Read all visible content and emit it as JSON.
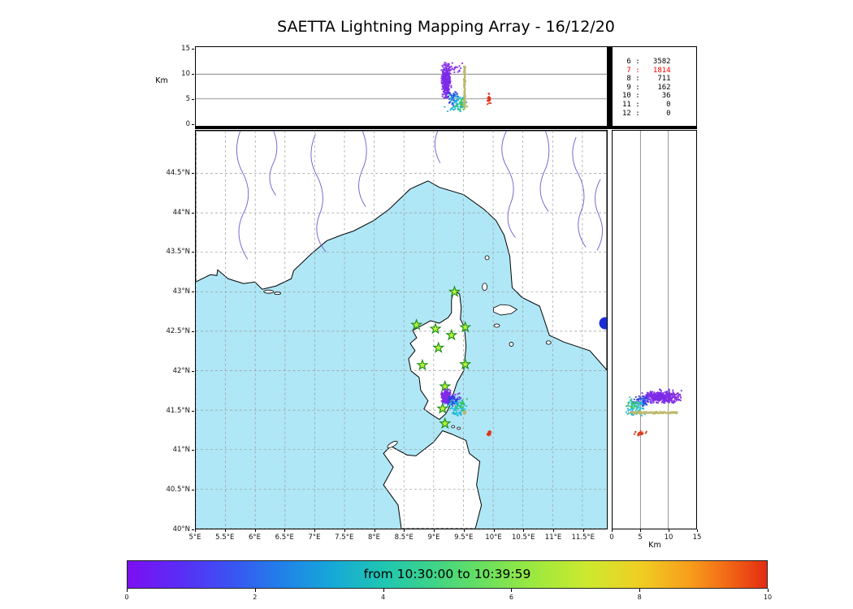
{
  "title": "SAETTA Lightning Mapping Array - 16/12/20",
  "chart_data": {
    "type": "scatter",
    "title": "SAETTA Lightning Mapping Array - 16/12/20",
    "time_label": "from 10:30:00 to 10:39:59",
    "altitude_axis": {
      "label": "Km",
      "ticks": [
        0,
        5,
        10,
        15
      ],
      "tick_labels": [
        "0",
        "5",
        "10",
        "15"
      ],
      "grid": [
        5,
        10
      ],
      "range_km": [
        0,
        15
      ]
    },
    "km_axis": {
      "label": "Km",
      "ticks": [
        0,
        5,
        10,
        15
      ],
      "tick_labels": [
        "0",
        "5",
        "10",
        "15"
      ],
      "grid": [
        5,
        10
      ],
      "range_km": [
        0,
        15
      ]
    },
    "map_axis": {
      "lon_ticks": [
        5,
        5.5,
        6,
        6.5,
        7,
        7.5,
        8,
        8.5,
        9,
        9.5,
        10,
        10.5,
        11,
        11.5
      ],
      "lon_tick_labels": [
        "5°E",
        "5.5°E",
        "6°E",
        "6.5°E",
        "7°E",
        "7.5°E",
        "8°E",
        "8.5°E",
        "9°E",
        "9.5°E",
        "10°E",
        "10.5°E",
        "11°E",
        "11.5°E"
      ],
      "lat_ticks": [
        40,
        40.5,
        41,
        41.5,
        42,
        42.5,
        43,
        43.5,
        44,
        44.5
      ],
      "lat_tick_labels": [
        "40°N",
        "40.5°N",
        "41°N",
        "41.5°N",
        "42°N",
        "42.5°N",
        "43°N",
        "43.5°N",
        "44°N",
        "44.5°N"
      ],
      "lon_range": [
        5.0,
        11.91
      ],
      "lat_range": [
        40.0,
        45.04
      ]
    },
    "station_counts": {
      "rows": [
        [
          "6",
          "3582"
        ],
        [
          "7",
          "1814"
        ],
        [
          "8",
          "711"
        ],
        [
          "9",
          "162"
        ],
        [
          "10",
          "36"
        ],
        [
          "11",
          "0"
        ],
        [
          "12",
          "0"
        ]
      ],
      "highlight_index": 1
    },
    "stations_lonlat": [
      [
        9.35,
        43.0
      ],
      [
        8.71,
        42.58
      ],
      [
        9.03,
        42.53
      ],
      [
        9.3,
        42.45
      ],
      [
        9.53,
        42.55
      ],
      [
        9.08,
        42.29
      ],
      [
        8.81,
        42.07
      ],
      [
        9.53,
        42.08
      ],
      [
        9.19,
        41.8
      ],
      [
        9.15,
        41.52
      ],
      [
        9.19,
        41.33
      ]
    ],
    "source_clusters": [
      {
        "name": "flash-core-early-purple",
        "color": "#7d2ae8",
        "count": 330,
        "lon": {
          "c": 9.21,
          "s": 0.038
        },
        "lat": {
          "c": 41.665,
          "s": 0.034
        },
        "alt": {
          "c": 8.4,
          "s": 1.6,
          "min": 5.2,
          "max": 12.2
        }
      },
      {
        "name": "flash-top-purple",
        "color": "#8a2be2",
        "count": 28,
        "lon": {
          "c": 9.3,
          "s": 0.08
        },
        "lat": {
          "c": 41.66,
          "s": 0.04
        },
        "alt": {
          "c": 11.3,
          "s": 0.7,
          "min": 10.2,
          "max": 13.0
        }
      },
      {
        "name": "mid-level-blue",
        "color": "#2a3fe0",
        "count": 46,
        "lon": {
          "c": 9.33,
          "s": 0.05
        },
        "lat": {
          "c": 41.62,
          "s": 0.032
        },
        "alt": {
          "c": 5.2,
          "s": 0.75,
          "min": 3.6,
          "max": 6.9
        }
      },
      {
        "name": "low-level-cyan",
        "color": "#1fb8d8",
        "count": 70,
        "lon": {
          "c": 9.42,
          "s": 0.085
        },
        "lat": {
          "c": 41.53,
          "s": 0.06
        },
        "alt": {
          "c": 3.8,
          "s": 1.0,
          "min": 1.7,
          "max": 5.9
        }
      },
      {
        "name": "low-level-green",
        "color": "#38c83c",
        "count": 16,
        "lon": {
          "c": 9.45,
          "s": 0.05
        },
        "lat": {
          "c": 41.56,
          "s": 0.035
        },
        "alt": {
          "c": 3.6,
          "s": 0.8,
          "min": 2.2,
          "max": 5.3
        }
      },
      {
        "name": "vertical-channel-khaki",
        "color": "#bdb76b",
        "count": 150,
        "lon": {
          "c": 9.52,
          "s": 0.007
        },
        "lat": {
          "c": 41.468,
          "s": 0.007
        },
        "alt": {
          "uniform": true,
          "min": 3.0,
          "max": 11.6
        }
      },
      {
        "name": "late-flash-red",
        "color": "#e03218",
        "count": 22,
        "lon": {
          "c": 9.93,
          "s": 0.013
        },
        "lat": {
          "c": 41.21,
          "s": 0.013
        },
        "alt": {
          "c": 4.9,
          "s": 0.55,
          "min": 3.8,
          "max": 6.1
        }
      }
    ],
    "colorbar": {
      "range": [
        0,
        10
      ],
      "ticks": [
        0,
        2,
        4,
        6,
        8,
        10
      ],
      "tick_labels": [
        "0",
        "2",
        "4",
        "6",
        "8",
        "10"
      ]
    }
  },
  "colors": {
    "sea": "#afe7f6",
    "land": "#ffffff",
    "coast": "#000000",
    "river": "#6a5acd",
    "lake": "#1b2ed6",
    "map_grid": "#999999",
    "panel_grid": "#777777",
    "station_fill": "#baf13a",
    "station_edge": "#168a16",
    "highlight": "#ff0000",
    "colorbar_stops": [
      [
        "0%",
        "#7c0ff0"
      ],
      [
        "8%",
        "#5b2cf6"
      ],
      [
        "16%",
        "#3b52f3"
      ],
      [
        "24%",
        "#2180e8"
      ],
      [
        "32%",
        "#16a8d8"
      ],
      [
        "40%",
        "#1fc6b2"
      ],
      [
        "48%",
        "#3fd486"
      ],
      [
        "56%",
        "#6ce05c"
      ],
      [
        "64%",
        "#9fe93e"
      ],
      [
        "72%",
        "#cde92e"
      ],
      [
        "80%",
        "#efcf22"
      ],
      [
        "88%",
        "#f79d1b"
      ],
      [
        "94%",
        "#f26716"
      ],
      [
        "100%",
        "#e22c12"
      ]
    ]
  }
}
